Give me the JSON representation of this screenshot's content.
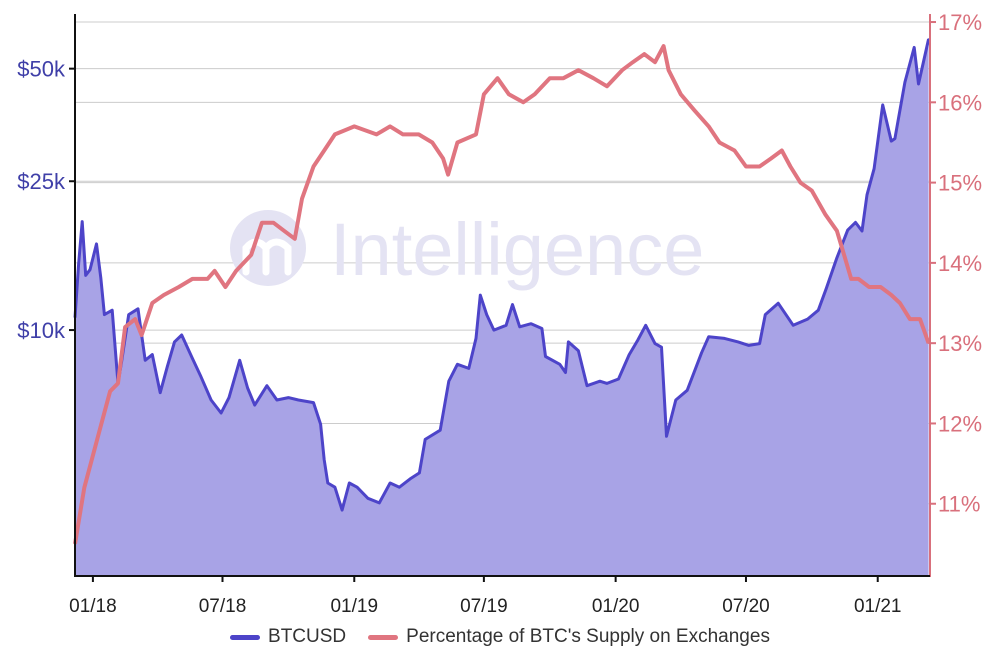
{
  "watermark": {
    "text": "Intelligence"
  },
  "legend": {
    "btc_label": "BTCUSD",
    "supply_label": "Percentage of BTC's Supply on Exchanges"
  },
  "colors": {
    "btc_line": "#4d44c9",
    "btc_fill": "#a8a3e6",
    "supply_line": "#e07580",
    "left_axis_text": "#3f3fa8",
    "right_axis_text": "#d9707c",
    "grid": "#cccccc",
    "watermark": "#e4e3f3"
  },
  "chart_data": {
    "type": "area",
    "title": "",
    "xlabel": "",
    "x_ticks": [
      "01/18",
      "07/18",
      "01/19",
      "07/19",
      "01/20",
      "07/20",
      "01/21"
    ],
    "y_left": {
      "scale": "log",
      "ticks": [
        "$10k",
        "$25k",
        "$50k"
      ],
      "tick_values": [
        10000,
        25000,
        50000
      ],
      "range": [
        2200,
        70000
      ]
    },
    "y_right": {
      "scale": "linear",
      "ticks": [
        "11%",
        "12%",
        "13%",
        "14%",
        "15%",
        "16%",
        "17%"
      ],
      "tick_values": [
        11,
        12,
        13,
        14,
        15,
        16,
        17
      ],
      "range": [
        10.1,
        17.1
      ]
    },
    "x_range": [
      "2017-12-07",
      "2021-03-15"
    ],
    "grid": true,
    "legend_position": "bottom",
    "series": [
      {
        "name": "BTCUSD",
        "axis": "left",
        "style": "area",
        "points": [
          [
            "2017-12-07",
            10800
          ],
          [
            "2017-12-12",
            15000
          ],
          [
            "2017-12-17",
            19500
          ],
          [
            "2017-12-22",
            14000
          ],
          [
            "2017-12-28",
            14500
          ],
          [
            "2018-01-06",
            17000
          ],
          [
            "2018-01-12",
            13800
          ],
          [
            "2018-01-17",
            11000
          ],
          [
            "2018-01-28",
            11300
          ],
          [
            "2018-02-05",
            7200
          ],
          [
            "2018-02-10",
            8200
          ],
          [
            "2018-02-20",
            11000
          ],
          [
            "2018-03-05",
            11400
          ],
          [
            "2018-03-15",
            8300
          ],
          [
            "2018-03-25",
            8600
          ],
          [
            "2018-04-05",
            6800
          ],
          [
            "2018-04-15",
            8000
          ],
          [
            "2018-04-25",
            9300
          ],
          [
            "2018-05-05",
            9700
          ],
          [
            "2018-05-20",
            8400
          ],
          [
            "2018-06-01",
            7500
          ],
          [
            "2018-06-15",
            6500
          ],
          [
            "2018-06-29",
            6000
          ],
          [
            "2018-07-10",
            6600
          ],
          [
            "2018-07-25",
            8300
          ],
          [
            "2018-08-05",
            7000
          ],
          [
            "2018-08-15",
            6300
          ],
          [
            "2018-09-01",
            7100
          ],
          [
            "2018-09-15",
            6500
          ],
          [
            "2018-10-01",
            6600
          ],
          [
            "2018-10-15",
            6500
          ],
          [
            "2018-11-05",
            6400
          ],
          [
            "2018-11-15",
            5600
          ],
          [
            "2018-11-20",
            4500
          ],
          [
            "2018-11-25",
            3900
          ],
          [
            "2018-12-05",
            3800
          ],
          [
            "2018-12-15",
            3300
          ],
          [
            "2018-12-25",
            3900
          ],
          [
            "2019-01-05",
            3800
          ],
          [
            "2019-01-20",
            3550
          ],
          [
            "2019-02-05",
            3450
          ],
          [
            "2019-02-20",
            3900
          ],
          [
            "2019-03-05",
            3800
          ],
          [
            "2019-03-20",
            4000
          ],
          [
            "2019-04-02",
            4150
          ],
          [
            "2019-04-10",
            5100
          ],
          [
            "2019-05-01",
            5400
          ],
          [
            "2019-05-13",
            7300
          ],
          [
            "2019-05-25",
            8100
          ],
          [
            "2019-06-10",
            7900
          ],
          [
            "2019-06-20",
            9500
          ],
          [
            "2019-06-26",
            12400
          ],
          [
            "2019-07-05",
            11000
          ],
          [
            "2019-07-15",
            10000
          ],
          [
            "2019-08-01",
            10300
          ],
          [
            "2019-08-10",
            11700
          ],
          [
            "2019-08-20",
            10200
          ],
          [
            "2019-09-05",
            10400
          ],
          [
            "2019-09-20",
            10100
          ],
          [
            "2019-09-25",
            8500
          ],
          [
            "2019-10-15",
            8100
          ],
          [
            "2019-10-23",
            7700
          ],
          [
            "2019-10-27",
            9300
          ],
          [
            "2019-11-10",
            8800
          ],
          [
            "2019-11-22",
            7100
          ],
          [
            "2019-12-10",
            7300
          ],
          [
            "2019-12-20",
            7200
          ],
          [
            "2020-01-05",
            7400
          ],
          [
            "2020-01-20",
            8600
          ],
          [
            "2020-02-01",
            9400
          ],
          [
            "2020-02-12",
            10300
          ],
          [
            "2020-02-25",
            9200
          ],
          [
            "2020-03-05",
            9000
          ],
          [
            "2020-03-12",
            5200
          ],
          [
            "2020-03-25",
            6500
          ],
          [
            "2020-04-10",
            6900
          ],
          [
            "2020-04-30",
            8700
          ],
          [
            "2020-05-10",
            9600
          ],
          [
            "2020-06-01",
            9500
          ],
          [
            "2020-06-20",
            9300
          ],
          [
            "2020-07-05",
            9100
          ],
          [
            "2020-07-20",
            9200
          ],
          [
            "2020-07-28",
            11000
          ],
          [
            "2020-08-15",
            11800
          ],
          [
            "2020-09-05",
            10300
          ],
          [
            "2020-09-25",
            10700
          ],
          [
            "2020-10-10",
            11300
          ],
          [
            "2020-10-21",
            12900
          ],
          [
            "2020-11-05",
            15600
          ],
          [
            "2020-11-20",
            18500
          ],
          [
            "2020-12-01",
            19400
          ],
          [
            "2020-12-10",
            18400
          ],
          [
            "2020-12-17",
            23000
          ],
          [
            "2020-12-27",
            27000
          ],
          [
            "2021-01-08",
            40000
          ],
          [
            "2021-01-20",
            32000
          ],
          [
            "2021-01-25",
            32500
          ],
          [
            "2021-02-08",
            46000
          ],
          [
            "2021-02-21",
            57000
          ],
          [
            "2021-02-27",
            45500
          ],
          [
            "2021-03-13",
            60000
          ]
        ]
      },
      {
        "name": "Percentage of BTC's Supply on Exchanges",
        "axis": "right",
        "style": "line",
        "points": [
          [
            "2017-12-07",
            10.5
          ],
          [
            "2017-12-20",
            11.2
          ],
          [
            "2018-01-10",
            11.9
          ],
          [
            "2018-01-25",
            12.4
          ],
          [
            "2018-02-05",
            12.5
          ],
          [
            "2018-02-15",
            13.2
          ],
          [
            "2018-03-01",
            13.3
          ],
          [
            "2018-03-10",
            13.1
          ],
          [
            "2018-03-25",
            13.5
          ],
          [
            "2018-04-10",
            13.6
          ],
          [
            "2018-05-01",
            13.7
          ],
          [
            "2018-05-20",
            13.8
          ],
          [
            "2018-06-10",
            13.8
          ],
          [
            "2018-06-20",
            13.9
          ],
          [
            "2018-07-05",
            13.7
          ],
          [
            "2018-07-20",
            13.9
          ],
          [
            "2018-08-10",
            14.1
          ],
          [
            "2018-08-25",
            14.5
          ],
          [
            "2018-09-10",
            14.5
          ],
          [
            "2018-09-25",
            14.4
          ],
          [
            "2018-10-10",
            14.3
          ],
          [
            "2018-10-20",
            14.8
          ],
          [
            "2018-11-05",
            15.2
          ],
          [
            "2018-11-20",
            15.4
          ],
          [
            "2018-12-05",
            15.6
          ],
          [
            "2019-01-01",
            15.7
          ],
          [
            "2019-02-01",
            15.6
          ],
          [
            "2019-02-20",
            15.7
          ],
          [
            "2019-03-10",
            15.6
          ],
          [
            "2019-04-01",
            15.6
          ],
          [
            "2019-04-20",
            15.5
          ],
          [
            "2019-05-05",
            15.3
          ],
          [
            "2019-05-12",
            15.1
          ],
          [
            "2019-05-25",
            15.5
          ],
          [
            "2019-06-20",
            15.6
          ],
          [
            "2019-07-01",
            16.1
          ],
          [
            "2019-07-20",
            16.3
          ],
          [
            "2019-08-05",
            16.1
          ],
          [
            "2019-08-25",
            16.0
          ],
          [
            "2019-09-10",
            16.1
          ],
          [
            "2019-10-01",
            16.3
          ],
          [
            "2019-10-20",
            16.3
          ],
          [
            "2019-11-10",
            16.4
          ],
          [
            "2019-12-01",
            16.3
          ],
          [
            "2019-12-20",
            16.2
          ],
          [
            "2020-01-10",
            16.4
          ],
          [
            "2020-01-25",
            16.5
          ],
          [
            "2020-02-10",
            16.6
          ],
          [
            "2020-02-25",
            16.5
          ],
          [
            "2020-03-08",
            16.7
          ],
          [
            "2020-03-15",
            16.4
          ],
          [
            "2020-04-01",
            16.1
          ],
          [
            "2020-04-20",
            15.9
          ],
          [
            "2020-05-10",
            15.7
          ],
          [
            "2020-05-25",
            15.5
          ],
          [
            "2020-06-15",
            15.4
          ],
          [
            "2020-07-01",
            15.2
          ],
          [
            "2020-07-20",
            15.2
          ],
          [
            "2020-08-05",
            15.3
          ],
          [
            "2020-08-20",
            15.4
          ],
          [
            "2020-09-01",
            15.2
          ],
          [
            "2020-09-15",
            15.0
          ],
          [
            "2020-10-01",
            14.9
          ],
          [
            "2020-10-20",
            14.6
          ],
          [
            "2020-11-05",
            14.4
          ],
          [
            "2020-11-15",
            14.1
          ],
          [
            "2020-11-25",
            13.8
          ],
          [
            "2020-12-05",
            13.8
          ],
          [
            "2020-12-20",
            13.7
          ],
          [
            "2021-01-05",
            13.7
          ],
          [
            "2021-01-20",
            13.6
          ],
          [
            "2021-02-01",
            13.5
          ],
          [
            "2021-02-15",
            13.3
          ],
          [
            "2021-03-01",
            13.3
          ],
          [
            "2021-03-13",
            13.0
          ]
        ]
      }
    ]
  }
}
